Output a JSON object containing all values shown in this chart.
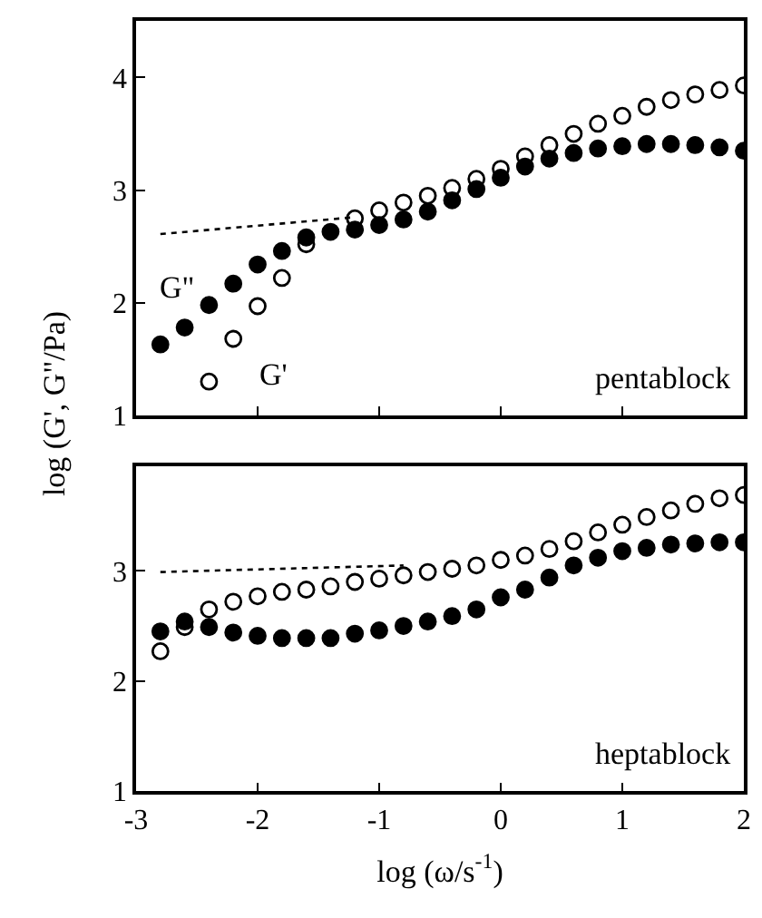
{
  "chart_data": [
    {
      "type": "scatter",
      "x": [
        -2.8,
        -2.6,
        -2.4,
        -2.2,
        -2.0,
        -1.8,
        -1.6,
        -1.4,
        -1.2,
        -1.0,
        -0.8,
        -0.6,
        -0.4,
        -0.2,
        0.0,
        0.2,
        0.4,
        0.6,
        0.8,
        1.0,
        1.2,
        1.4,
        1.6,
        1.8,
        2.0
      ],
      "ylabel": "log (G', G\"/Pa)",
      "xlim": [
        -3,
        2
      ],
      "xticks": [
        -3,
        -2,
        -1,
        0,
        1,
        2
      ],
      "ylim": [
        1,
        4.5
      ],
      "yticks": [
        1,
        2,
        3,
        4
      ],
      "tick_labels": "y",
      "series": [
        {
          "name": "G\"",
          "color": "#000000",
          "marker": "circle",
          "values": [
            1.63,
            1.78,
            1.98,
            2.17,
            2.34,
            2.46,
            2.58,
            2.63,
            2.65,
            2.69,
            2.74,
            2.81,
            2.91,
            3.01,
            3.11,
            3.21,
            3.28,
            3.33,
            3.37,
            3.39,
            3.41,
            3.41,
            3.4,
            3.38,
            3.35
          ]
        },
        {
          "name": "G'",
          "color": "#000000",
          "marker": "circle-open",
          "values": [
            null,
            null,
            1.3,
            1.68,
            1.97,
            2.22,
            2.52,
            null,
            2.75,
            2.82,
            2.89,
            2.95,
            3.02,
            3.1,
            3.19,
            3.3,
            3.4,
            3.5,
            3.59,
            3.66,
            3.74,
            3.8,
            3.85,
            3.89,
            3.93
          ]
        },
        {
          "type": "line",
          "color": "#000000",
          "line_style": "dotted",
          "x": [
            -2.8,
            -1.2
          ],
          "values": [
            2.61,
            2.76
          ]
        }
      ],
      "annotations": [
        "pentablock"
      ]
    },
    {
      "type": "scatter",
      "x": [
        -2.8,
        -2.6,
        -2.4,
        -2.2,
        -2.0,
        -1.8,
        -1.6,
        -1.4,
        -1.2,
        -1.0,
        -0.8,
        -0.6,
        -0.4,
        -0.2,
        0.0,
        0.2,
        0.4,
        0.6,
        0.8,
        1.0,
        1.2,
        1.4,
        1.6,
        1.8,
        2.0
      ],
      "xlabel": "log (ω/s$^{-1}$)",
      "xlim": [
        -3,
        2
      ],
      "xticks": [
        -3,
        -2,
        -1,
        0,
        1,
        2
      ],
      "ylim": [
        1,
        3.95
      ],
      "yticks": [
        1,
        2,
        3
      ],
      "series": [
        {
          "color": "#000000",
          "marker": "circle",
          "values": [
            2.45,
            2.54,
            2.49,
            2.44,
            2.41,
            2.39,
            2.39,
            2.39,
            2.43,
            2.46,
            2.5,
            2.54,
            2.59,
            2.65,
            2.76,
            2.83,
            2.94,
            3.05,
            3.12,
            3.18,
            3.21,
            3.24,
            3.25,
            3.26,
            3.26
          ]
        },
        {
          "color": "#000000",
          "marker": "circle-open",
          "values": [
            2.27,
            2.49,
            2.65,
            2.72,
            2.77,
            2.81,
            2.83,
            2.86,
            2.9,
            2.93,
            2.96,
            2.99,
            3.02,
            3.05,
            3.1,
            3.14,
            3.2,
            3.27,
            3.35,
            3.42,
            3.49,
            3.55,
            3.61,
            3.66,
            3.69
          ]
        },
        {
          "type": "line",
          "color": "#000000",
          "line_style": "dotted",
          "x": [
            -2.8,
            -0.8
          ],
          "values": [
            2.99,
            3.05
          ]
        }
      ],
      "annotations": [
        "heptablock"
      ]
    }
  ]
}
